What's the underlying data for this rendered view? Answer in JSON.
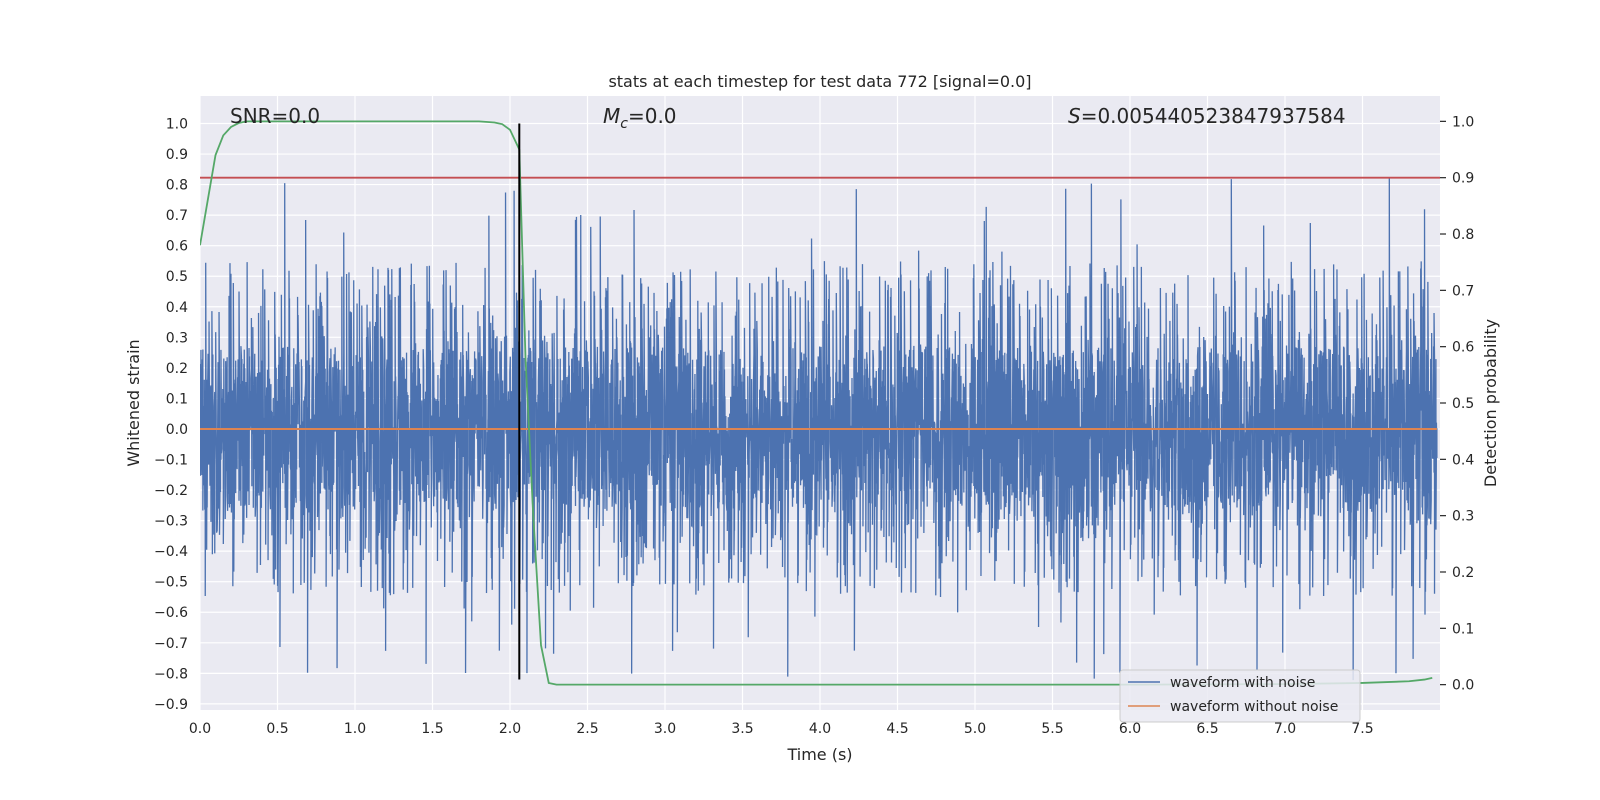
{
  "chart_data": {
    "type": "line",
    "title": "stats at each timestep for test data 772 [signal=0.0]",
    "xlabel": "Time (s)",
    "ylabel": "Whitened strain",
    "y2label": "Detection probability",
    "xlim": [
      0.0,
      8.0
    ],
    "ylim": [
      -0.92,
      1.09
    ],
    "y2lim": [
      -0.045,
      1.045
    ],
    "xticks": [
      0.0,
      0.5,
      1.0,
      1.5,
      2.0,
      2.5,
      3.0,
      3.5,
      4.0,
      4.5,
      5.0,
      5.5,
      6.0,
      6.5,
      7.0,
      7.5
    ],
    "xtick_labels": [
      "0.0",
      "0.5",
      "1.0",
      "1.5",
      "2.0",
      "2.5",
      "3.0",
      "3.5",
      "4.0",
      "4.5",
      "5.0",
      "5.5",
      "6.0",
      "6.5",
      "7.0",
      "7.5"
    ],
    "yticks": [
      1.0,
      0.9,
      0.8,
      0.7,
      0.6,
      0.5,
      0.4,
      0.3,
      0.2,
      0.1,
      0.0,
      -0.1,
      -0.2,
      -0.3,
      -0.4,
      -0.5,
      -0.6,
      -0.7,
      -0.8,
      -0.9
    ],
    "ytick_labels": [
      "1.0",
      "0.9",
      "0.8",
      "0.7",
      "0.6",
      "0.5",
      "0.4",
      "0.3",
      "0.2",
      "0.1",
      "0.0",
      "−0.1",
      "−0.2",
      "−0.3",
      "−0.4",
      "−0.5",
      "−0.6",
      "−0.7",
      "−0.8",
      "−0.9"
    ],
    "y2ticks": [
      1.0,
      0.9,
      0.8,
      0.7,
      0.6,
      0.5,
      0.4,
      0.3,
      0.2,
      0.1,
      0.0
    ],
    "y2tick_labels": [
      "1.0",
      "0.9",
      "0.8",
      "0.7",
      "0.6",
      "0.5",
      "0.4",
      "0.3",
      "0.2",
      "0.1",
      "0.0"
    ],
    "grid": true,
    "legend_position": "lower-right",
    "annotations": {
      "snr": "SNR=0.0",
      "mc_symbol": "M",
      "mc_sub": "c",
      "mc_value": "=0.0",
      "s_symbol": "S",
      "s_value": "=0.005440523847937584"
    },
    "threshold": {
      "axis": "right",
      "value": 0.9,
      "color": "#c44e52"
    },
    "vertical_marker": {
      "x": 2.06,
      "ymin": -0.82,
      "ymax": 1.0,
      "color": "#000000"
    },
    "series": [
      {
        "name": "waveform with noise",
        "color": "#4c72b0",
        "axis": "left",
        "kind": "noise",
        "t_start": 0.0,
        "t_end": 7.98,
        "core_amplitude": 0.27,
        "typical_peak": 0.55,
        "max_peak": 1.0,
        "min_trough": -0.83
      },
      {
        "name": "waveform without noise",
        "color": "#dd8452",
        "axis": "left",
        "x": [
          0.0,
          7.98
        ],
        "y": [
          0.0,
          0.0
        ]
      },
      {
        "color": "#55a868",
        "axis": "right",
        "x": [
          0.0,
          0.05,
          0.1,
          0.15,
          0.2,
          0.25,
          0.3,
          0.4,
          0.5,
          1.0,
          1.5,
          1.8,
          1.9,
          1.95,
          2.0,
          2.06,
          2.1,
          2.15,
          2.2,
          2.25,
          2.3,
          2.5,
          3.0,
          4.0,
          5.0,
          6.0,
          7.0,
          7.5,
          7.8,
          7.9,
          7.95
        ],
        "y": [
          0.78,
          0.86,
          0.94,
          0.975,
          0.99,
          0.997,
          1.0,
          1.0,
          1.0,
          1.0,
          1.0,
          1.0,
          0.998,
          0.995,
          0.985,
          0.95,
          0.58,
          0.3,
          0.07,
          0.003,
          0.0,
          0.0,
          0.0,
          0.0,
          0.0,
          0.0,
          0.001,
          0.003,
          0.006,
          0.009,
          0.012
        ]
      }
    ]
  }
}
